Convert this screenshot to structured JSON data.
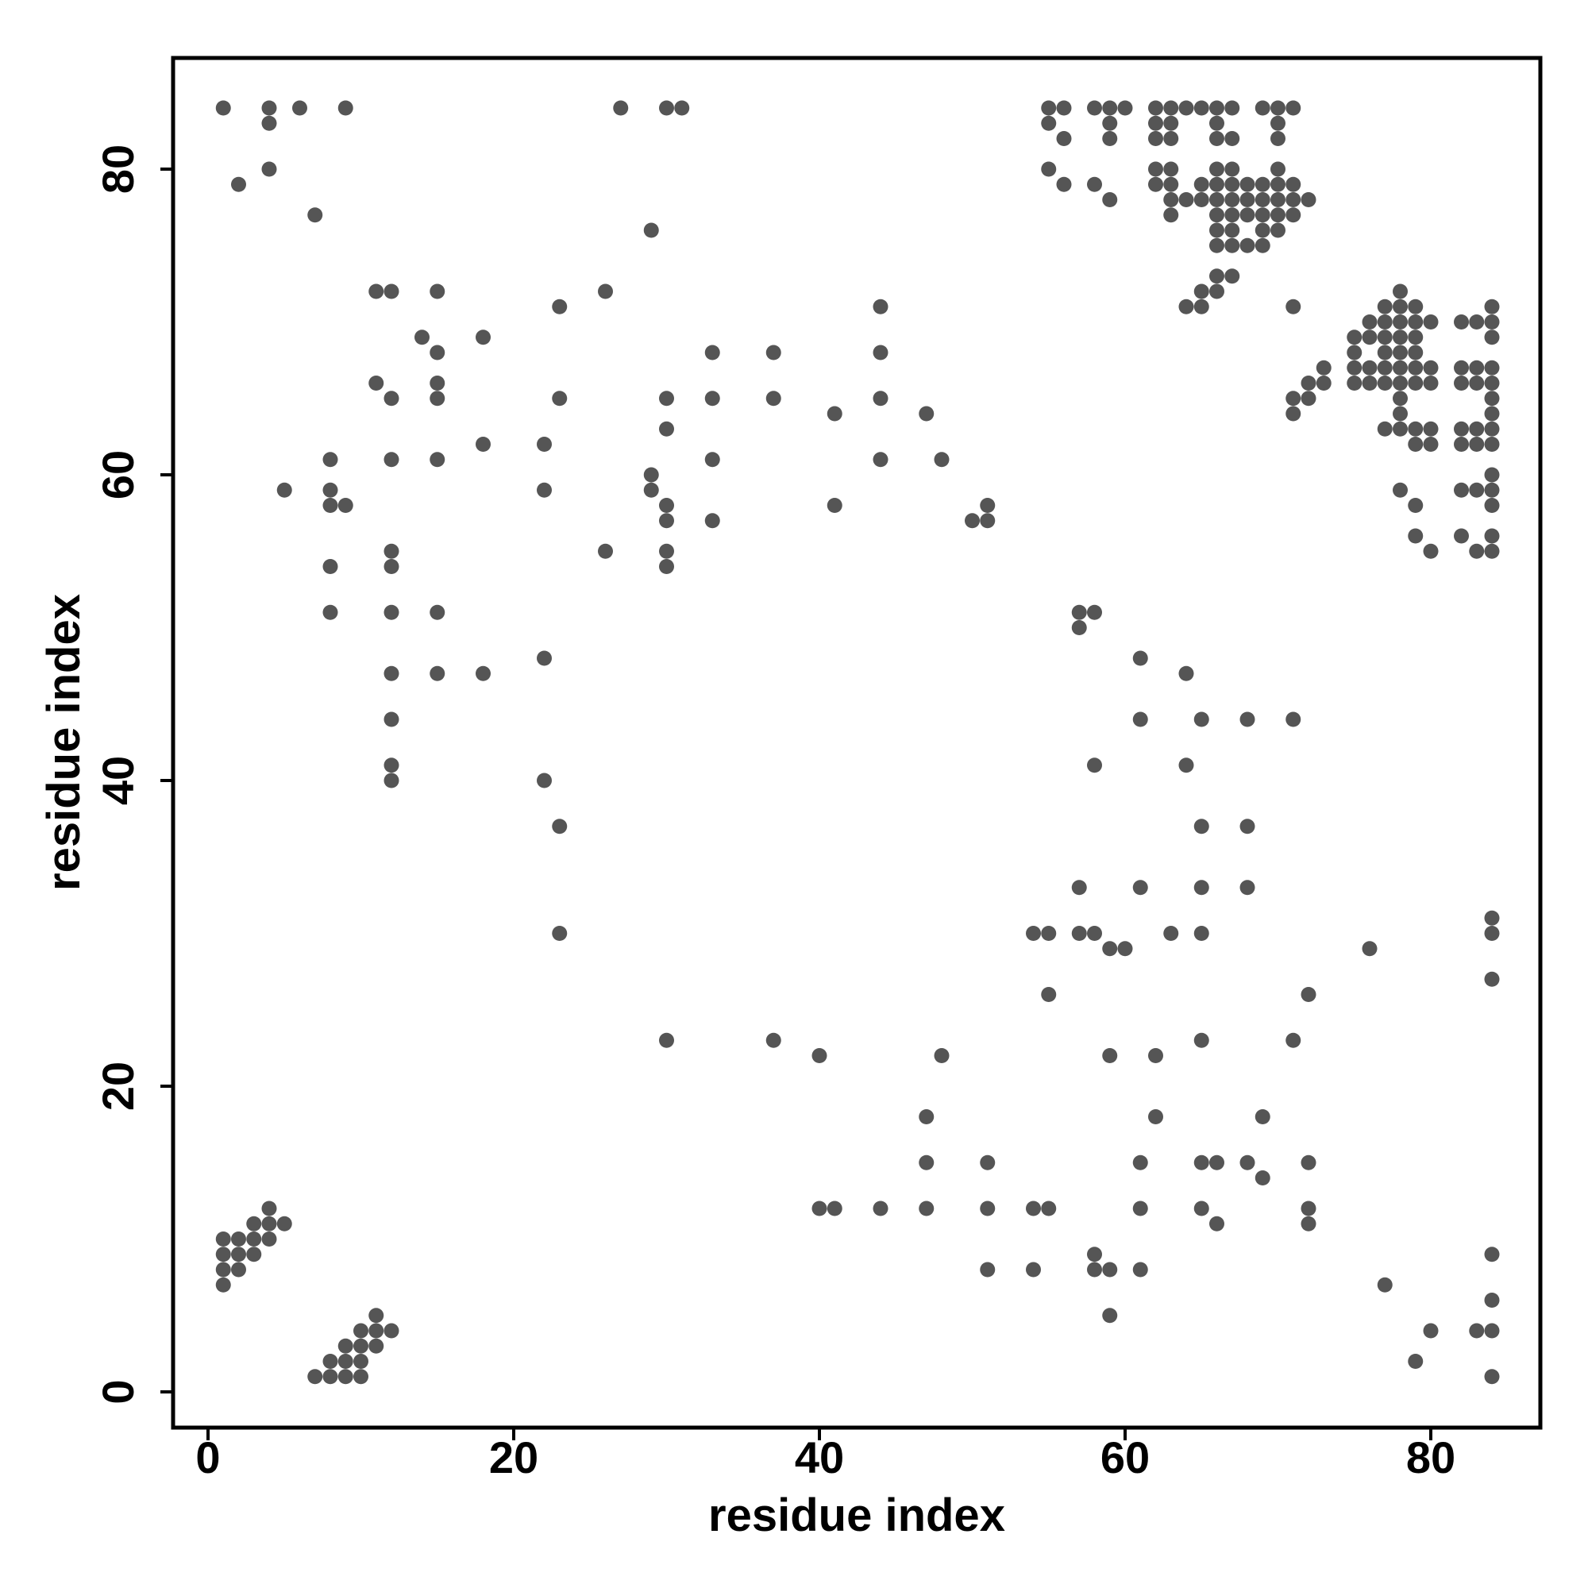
{
  "chart_data": {
    "type": "scatter",
    "xlabel": "residue index",
    "ylabel": "residue index",
    "xlim": [
      -2.5,
      87
    ],
    "ylim": [
      -2.5,
      87
    ],
    "xticks": [
      0,
      20,
      40,
      60,
      80
    ],
    "yticks": [
      0,
      20,
      40,
      60,
      80
    ],
    "grid": false,
    "marker_color": "#555555",
    "points": [
      [
        1,
        84
      ],
      [
        4,
        84
      ],
      [
        6,
        84
      ],
      [
        9,
        84
      ],
      [
        27,
        84
      ],
      [
        30,
        84
      ],
      [
        31,
        84
      ],
      [
        4,
        83
      ],
      [
        2,
        79
      ],
      [
        4,
        80
      ],
      [
        7,
        77
      ],
      [
        29,
        76
      ],
      [
        55,
        84
      ],
      [
        56,
        84
      ],
      [
        58,
        84
      ],
      [
        59,
        84
      ],
      [
        60,
        84
      ],
      [
        62,
        84
      ],
      [
        63,
        84
      ],
      [
        64,
        84
      ],
      [
        65,
        84
      ],
      [
        66,
        84
      ],
      [
        67,
        84
      ],
      [
        69,
        84
      ],
      [
        70,
        84
      ],
      [
        71,
        84
      ],
      [
        55,
        83
      ],
      [
        59,
        83
      ],
      [
        62,
        83
      ],
      [
        63,
        83
      ],
      [
        66,
        83
      ],
      [
        70,
        83
      ],
      [
        56,
        82
      ],
      [
        59,
        82
      ],
      [
        62,
        82
      ],
      [
        63,
        82
      ],
      [
        66,
        82
      ],
      [
        67,
        82
      ],
      [
        70,
        82
      ],
      [
        55,
        80
      ],
      [
        62,
        80
      ],
      [
        63,
        80
      ],
      [
        66,
        80
      ],
      [
        67,
        80
      ],
      [
        70,
        80
      ],
      [
        56,
        79
      ],
      [
        58,
        79
      ],
      [
        62,
        79
      ],
      [
        63,
        79
      ],
      [
        65,
        79
      ],
      [
        66,
        79
      ],
      [
        67,
        79
      ],
      [
        68,
        79
      ],
      [
        69,
        79
      ],
      [
        70,
        79
      ],
      [
        71,
        79
      ],
      [
        59,
        78
      ],
      [
        63,
        78
      ],
      [
        64,
        78
      ],
      [
        65,
        78
      ],
      [
        66,
        78
      ],
      [
        67,
        78
      ],
      [
        68,
        78
      ],
      [
        69,
        78
      ],
      [
        70,
        78
      ],
      [
        71,
        78
      ],
      [
        72,
        78
      ],
      [
        63,
        77
      ],
      [
        66,
        77
      ],
      [
        67,
        77
      ],
      [
        68,
        77
      ],
      [
        69,
        77
      ],
      [
        70,
        77
      ],
      [
        71,
        77
      ],
      [
        66,
        76
      ],
      [
        67,
        76
      ],
      [
        69,
        76
      ],
      [
        70,
        76
      ],
      [
        66,
        75
      ],
      [
        67,
        75
      ],
      [
        68,
        75
      ],
      [
        69,
        75
      ],
      [
        66,
        73
      ],
      [
        67,
        73
      ],
      [
        65,
        72
      ],
      [
        66,
        72
      ],
      [
        64,
        71
      ],
      [
        65,
        71
      ],
      [
        78,
        72
      ],
      [
        71,
        71
      ],
      [
        77,
        71
      ],
      [
        78,
        71
      ],
      [
        79,
        71
      ],
      [
        84,
        71
      ],
      [
        76,
        70
      ],
      [
        77,
        70
      ],
      [
        78,
        70
      ],
      [
        79,
        70
      ],
      [
        80,
        70
      ],
      [
        82,
        70
      ],
      [
        83,
        70
      ],
      [
        84,
        70
      ],
      [
        75,
        69
      ],
      [
        76,
        69
      ],
      [
        77,
        69
      ],
      [
        78,
        69
      ],
      [
        79,
        69
      ],
      [
        84,
        69
      ],
      [
        75,
        68
      ],
      [
        77,
        68
      ],
      [
        78,
        68
      ],
      [
        79,
        68
      ],
      [
        73,
        67
      ],
      [
        75,
        67
      ],
      [
        76,
        67
      ],
      [
        77,
        67
      ],
      [
        78,
        67
      ],
      [
        79,
        67
      ],
      [
        80,
        67
      ],
      [
        82,
        67
      ],
      [
        83,
        67
      ],
      [
        84,
        67
      ],
      [
        72,
        66
      ],
      [
        73,
        66
      ],
      [
        75,
        66
      ],
      [
        76,
        66
      ],
      [
        77,
        66
      ],
      [
        78,
        66
      ],
      [
        79,
        66
      ],
      [
        80,
        66
      ],
      [
        82,
        66
      ],
      [
        83,
        66
      ],
      [
        84,
        66
      ],
      [
        71,
        65
      ],
      [
        72,
        65
      ],
      [
        78,
        65
      ],
      [
        84,
        65
      ],
      [
        71,
        64
      ],
      [
        78,
        64
      ],
      [
        84,
        64
      ],
      [
        77,
        63
      ],
      [
        78,
        63
      ],
      [
        79,
        63
      ],
      [
        80,
        63
      ],
      [
        82,
        63
      ],
      [
        83,
        63
      ],
      [
        84,
        63
      ],
      [
        79,
        62
      ],
      [
        80,
        62
      ],
      [
        82,
        62
      ],
      [
        83,
        62
      ],
      [
        84,
        62
      ],
      [
        84,
        60
      ],
      [
        78,
        59
      ],
      [
        82,
        59
      ],
      [
        83,
        59
      ],
      [
        84,
        59
      ],
      [
        79,
        58
      ],
      [
        84,
        58
      ],
      [
        79,
        56
      ],
      [
        82,
        56
      ],
      [
        84,
        56
      ],
      [
        80,
        55
      ],
      [
        83,
        55
      ],
      [
        84,
        55
      ],
      [
        11,
        72
      ],
      [
        12,
        72
      ],
      [
        15,
        72
      ],
      [
        26,
        72
      ],
      [
        23,
        71
      ],
      [
        44,
        71
      ],
      [
        14,
        69
      ],
      [
        18,
        69
      ],
      [
        15,
        68
      ],
      [
        33,
        68
      ],
      [
        37,
        68
      ],
      [
        44,
        68
      ],
      [
        11,
        66
      ],
      [
        15,
        66
      ],
      [
        12,
        65
      ],
      [
        15,
        65
      ],
      [
        23,
        65
      ],
      [
        30,
        65
      ],
      [
        33,
        65
      ],
      [
        37,
        65
      ],
      [
        44,
        65
      ],
      [
        41,
        64
      ],
      [
        47,
        64
      ],
      [
        30,
        63
      ],
      [
        18,
        62
      ],
      [
        22,
        62
      ],
      [
        8,
        61
      ],
      [
        12,
        61
      ],
      [
        15,
        61
      ],
      [
        33,
        61
      ],
      [
        44,
        61
      ],
      [
        48,
        61
      ],
      [
        29,
        60
      ],
      [
        5,
        59
      ],
      [
        8,
        59
      ],
      [
        22,
        59
      ],
      [
        29,
        59
      ],
      [
        8,
        58
      ],
      [
        9,
        58
      ],
      [
        30,
        58
      ],
      [
        41,
        58
      ],
      [
        51,
        58
      ],
      [
        30,
        57
      ],
      [
        33,
        57
      ],
      [
        50,
        57
      ],
      [
        51,
        57
      ],
      [
        12,
        55
      ],
      [
        26,
        55
      ],
      [
        30,
        55
      ],
      [
        8,
        54
      ],
      [
        12,
        54
      ],
      [
        30,
        54
      ],
      [
        8,
        51
      ],
      [
        12,
        51
      ],
      [
        15,
        51
      ],
      [
        57,
        51
      ],
      [
        58,
        51
      ],
      [
        57,
        50
      ],
      [
        22,
        48
      ],
      [
        61,
        48
      ],
      [
        12,
        47
      ],
      [
        15,
        47
      ],
      [
        18,
        47
      ],
      [
        64,
        47
      ],
      [
        12,
        44
      ],
      [
        61,
        44
      ],
      [
        65,
        44
      ],
      [
        68,
        44
      ],
      [
        71,
        44
      ],
      [
        12,
        41
      ],
      [
        58,
        41
      ],
      [
        64,
        41
      ],
      [
        12,
        40
      ],
      [
        22,
        40
      ],
      [
        23,
        37
      ],
      [
        65,
        37
      ],
      [
        68,
        37
      ],
      [
        57,
        33
      ],
      [
        61,
        33
      ],
      [
        65,
        33
      ],
      [
        68,
        33
      ],
      [
        84,
        31
      ],
      [
        23,
        30
      ],
      [
        54,
        30
      ],
      [
        55,
        30
      ],
      [
        57,
        30
      ],
      [
        58,
        30
      ],
      [
        63,
        30
      ],
      [
        65,
        30
      ],
      [
        84,
        30
      ],
      [
        59,
        29
      ],
      [
        60,
        29
      ],
      [
        76,
        29
      ],
      [
        84,
        27
      ],
      [
        55,
        26
      ],
      [
        72,
        26
      ],
      [
        30,
        23
      ],
      [
        37,
        23
      ],
      [
        65,
        23
      ],
      [
        71,
        23
      ],
      [
        40,
        22
      ],
      [
        48,
        22
      ],
      [
        59,
        22
      ],
      [
        62,
        22
      ],
      [
        47,
        18
      ],
      [
        62,
        18
      ],
      [
        69,
        18
      ],
      [
        47,
        15
      ],
      [
        51,
        15
      ],
      [
        61,
        15
      ],
      [
        65,
        15
      ],
      [
        66,
        15
      ],
      [
        68,
        15
      ],
      [
        72,
        15
      ],
      [
        69,
        14
      ],
      [
        4,
        12
      ],
      [
        40,
        12
      ],
      [
        41,
        12
      ],
      [
        44,
        12
      ],
      [
        47,
        12
      ],
      [
        51,
        12
      ],
      [
        54,
        12
      ],
      [
        55,
        12
      ],
      [
        61,
        12
      ],
      [
        65,
        12
      ],
      [
        72,
        12
      ],
      [
        3,
        11
      ],
      [
        4,
        11
      ],
      [
        5,
        11
      ],
      [
        66,
        11
      ],
      [
        72,
        11
      ],
      [
        1,
        10
      ],
      [
        2,
        10
      ],
      [
        3,
        10
      ],
      [
        4,
        10
      ],
      [
        1,
        9
      ],
      [
        2,
        9
      ],
      [
        3,
        9
      ],
      [
        58,
        9
      ],
      [
        84,
        9
      ],
      [
        1,
        8
      ],
      [
        2,
        8
      ],
      [
        51,
        8
      ],
      [
        54,
        8
      ],
      [
        58,
        8
      ],
      [
        59,
        8
      ],
      [
        61,
        8
      ],
      [
        1,
        7
      ],
      [
        77,
        7
      ],
      [
        84,
        6
      ],
      [
        11,
        5
      ],
      [
        59,
        5
      ],
      [
        10,
        4
      ],
      [
        11,
        4
      ],
      [
        12,
        4
      ],
      [
        80,
        4
      ],
      [
        83,
        4
      ],
      [
        84,
        4
      ],
      [
        9,
        3
      ],
      [
        10,
        3
      ],
      [
        11,
        3
      ],
      [
        8,
        2
      ],
      [
        9,
        2
      ],
      [
        10,
        2
      ],
      [
        79,
        2
      ],
      [
        7,
        1
      ],
      [
        8,
        1
      ],
      [
        9,
        1
      ],
      [
        10,
        1
      ],
      [
        84,
        1
      ]
    ]
  }
}
